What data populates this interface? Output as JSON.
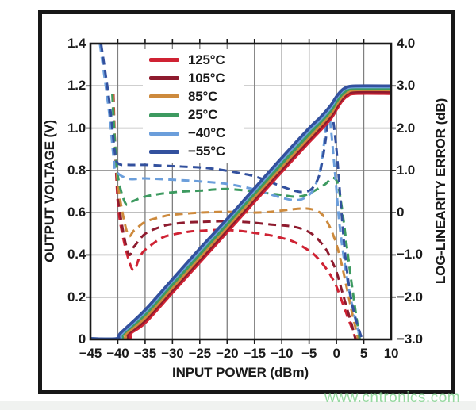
{
  "watermark": {
    "text": "www.cntronics.com",
    "color": "#86d392"
  },
  "frame_color": "#181818",
  "grid_color": "#7f7f7f",
  "axes": {
    "x": {
      "label": "INPUT POWER (dBm)",
      "min": -45,
      "max": 10,
      "ticks": [
        -45,
        -40,
        -35,
        -30,
        -25,
        -20,
        -15,
        -10,
        -5,
        0,
        5,
        10
      ],
      "tick_labels": [
        "−45",
        "−40",
        "−35",
        "−30",
        "−25",
        "−20",
        "−15",
        "−10",
        "−5",
        "0",
        "5",
        "10"
      ]
    },
    "y_left": {
      "label": "OUTPUT VOLTAGE (V)",
      "min": 0,
      "max": 1.4,
      "ticks": [
        1.4,
        1.2,
        1.0,
        0.8,
        0.6,
        0.4,
        0.2,
        0
      ],
      "tick_labels": [
        "1.4",
        "1.2",
        "1.0",
        "0.8",
        "0.6",
        "0.4",
        "0.2",
        "0"
      ]
    },
    "y_right": {
      "label": "LOG-LINEARITY ERROR (dB)",
      "min": -3,
      "max": 4,
      "ticks": [
        4.0,
        3.0,
        2.0,
        1.0,
        0,
        -1.0,
        -2.0,
        -3.0
      ],
      "tick_labels": [
        "4.0",
        "3.0",
        "2.0",
        "1.0",
        "0",
        "−1.0",
        "−2.0",
        "−3.0"
      ]
    }
  },
  "legend": {
    "items": [
      {
        "label": "125°C",
        "color": "#cf2233"
      },
      {
        "label": "105°C",
        "color": "#8e1b2e"
      },
      {
        "label": "85°C",
        "color": "#cd8a3d"
      },
      {
        "label": "25°C",
        "color": "#3d9a60"
      },
      {
        "label": "−40°C",
        "color": "#6b9edb"
      },
      {
        "label": "−55°C",
        "color": "#33519e"
      }
    ]
  },
  "chart_data": {
    "type": "line",
    "title": "",
    "x_unit": "dBm",
    "left_unit": "V",
    "right_unit": "dB",
    "grid": true,
    "legend_position": "upper-left-inside",
    "series": [
      {
        "name": "error-125C",
        "label": "125°C",
        "axis": "right",
        "style": "dashed",
        "color": "#cf2233",
        "points": [
          [
            -40.8,
            2.8
          ],
          [
            -40.35,
            1.1
          ],
          [
            -39.6,
            -0.2
          ],
          [
            -37.4,
            -1.33
          ],
          [
            -36,
            -1.05
          ],
          [
            -35,
            -0.88
          ],
          [
            -32,
            -0.6
          ],
          [
            -30,
            -0.52
          ],
          [
            -27,
            -0.45
          ],
          [
            -25,
            -0.43
          ],
          [
            -22,
            -0.41
          ],
          [
            -20,
            -0.41
          ],
          [
            -17,
            -0.44
          ],
          [
            -15,
            -0.48
          ],
          [
            -12,
            -0.54
          ],
          [
            -10,
            -0.6
          ],
          [
            -8,
            -0.68
          ],
          [
            -6,
            -0.82
          ],
          [
            -4,
            -1.0
          ],
          [
            -2,
            -1.3
          ],
          [
            -1,
            -1.5
          ],
          [
            0,
            -1.75
          ],
          [
            1,
            -2.1
          ],
          [
            2,
            -2.45
          ],
          [
            3,
            -2.8
          ],
          [
            3.9,
            -3.12
          ]
        ]
      },
      {
        "name": "error-105C",
        "label": "105°C",
        "axis": "right",
        "style": "dashed",
        "color": "#8e1b2e",
        "points": [
          [
            -40.85,
            2.8
          ],
          [
            -40.4,
            1.3
          ],
          [
            -39.7,
            0.1
          ],
          [
            -38.1,
            -0.95
          ],
          [
            -37,
            -0.8
          ],
          [
            -35,
            -0.5
          ],
          [
            -32,
            -0.33
          ],
          [
            -30,
            -0.27
          ],
          [
            -27,
            -0.23
          ],
          [
            -25,
            -0.22
          ],
          [
            -20,
            -0.2
          ],
          [
            -17,
            -0.22
          ],
          [
            -15,
            -0.24
          ],
          [
            -12,
            -0.28
          ],
          [
            -10,
            -0.3
          ],
          [
            -8,
            -0.33
          ],
          [
            -6,
            -0.4
          ],
          [
            -4,
            -0.55
          ],
          [
            -2,
            -0.85
          ],
          [
            -1,
            -1.1
          ],
          [
            0,
            -1.4
          ],
          [
            1,
            -1.85
          ],
          [
            2,
            -2.3
          ],
          [
            2.9,
            -2.7
          ],
          [
            3.7,
            -3.12
          ]
        ]
      },
      {
        "name": "error-85C",
        "label": "85°C",
        "axis": "right",
        "style": "dashed",
        "color": "#cd8a3d",
        "points": [
          [
            -40.9,
            2.8
          ],
          [
            -40.45,
            1.5
          ],
          [
            -39.8,
            0.5
          ],
          [
            -38.2,
            -0.5
          ],
          [
            -37,
            -0.42
          ],
          [
            -35,
            -0.22
          ],
          [
            -32,
            -0.1
          ],
          [
            -30,
            -0.05
          ],
          [
            -25,
            0.0
          ],
          [
            -20,
            0.02
          ],
          [
            -15,
            0.0
          ],
          [
            -12,
            0.02
          ],
          [
            -10,
            0.05
          ],
          [
            -8,
            0.08
          ],
          [
            -6,
            0.1
          ],
          [
            -4.5,
            0.08
          ],
          [
            -3,
            0.0
          ],
          [
            -2,
            -0.15
          ],
          [
            -1,
            -0.4
          ],
          [
            0,
            -0.75
          ],
          [
            1,
            -1.25
          ],
          [
            2,
            -1.85
          ],
          [
            3,
            -2.45
          ],
          [
            4.2,
            -3.12
          ]
        ]
      },
      {
        "name": "error-25C",
        "label": "25°C",
        "axis": "right",
        "style": "dashed",
        "color": "#3d9a60",
        "points": [
          [
            -41.0,
            2.8
          ],
          [
            -40.5,
            1.6
          ],
          [
            -39.9,
            0.8
          ],
          [
            -38.6,
            0.22
          ],
          [
            -37.5,
            0.26
          ],
          [
            -35,
            0.38
          ],
          [
            -32,
            0.45
          ],
          [
            -30,
            0.48
          ],
          [
            -27,
            0.51
          ],
          [
            -25,
            0.52
          ],
          [
            -22,
            0.55
          ],
          [
            -20,
            0.56
          ],
          [
            -17,
            0.53
          ],
          [
            -15,
            0.5
          ],
          [
            -12,
            0.45
          ],
          [
            -10,
            0.42
          ],
          [
            -8,
            0.38
          ],
          [
            -6,
            0.4
          ],
          [
            -4,
            0.52
          ],
          [
            -2,
            0.68
          ],
          [
            -0.8,
            0.82
          ],
          [
            0.2,
            0.7
          ],
          [
            1,
            0.1
          ],
          [
            1.8,
            -0.7
          ],
          [
            2.6,
            -1.5
          ],
          [
            3.4,
            -2.25
          ],
          [
            4.4,
            -3.12
          ]
        ]
      },
      {
        "name": "error-minus40C",
        "label": "−40°C",
        "axis": "right",
        "style": "dashed",
        "color": "#6b9edb",
        "points": [
          [
            -43.6,
            4.3
          ],
          [
            -41.7,
            2.5
          ],
          [
            -40.8,
            1.35
          ],
          [
            -40.3,
            0.98
          ],
          [
            -38,
            0.8
          ],
          [
            -35,
            0.81
          ],
          [
            -30,
            0.78
          ],
          [
            -25,
            0.74
          ],
          [
            -20,
            0.68
          ],
          [
            -15,
            0.55
          ],
          [
            -12,
            0.43
          ],
          [
            -10,
            0.35
          ],
          [
            -8,
            0.3
          ],
          [
            -6.5,
            0.31
          ],
          [
            -5,
            0.42
          ],
          [
            -4,
            0.6
          ],
          [
            -3,
            1.0
          ],
          [
            -2.3,
            1.6
          ],
          [
            -1.7,
            2.25
          ],
          [
            -1.2,
            2.2
          ],
          [
            -0.3,
            1.0
          ],
          [
            0.5,
            -0.2
          ],
          [
            1.5,
            -1.2
          ],
          [
            2.5,
            -1.95
          ],
          [
            3.5,
            -2.55
          ],
          [
            4.7,
            -3.12
          ]
        ]
      },
      {
        "name": "error-minus55C",
        "label": "−55°C",
        "axis": "right",
        "style": "dashed",
        "color": "#33519e",
        "points": [
          [
            -43.4,
            4.3
          ],
          [
            -41.5,
            2.6
          ],
          [
            -40.6,
            1.5
          ],
          [
            -40,
            1.17
          ],
          [
            -38,
            1.13
          ],
          [
            -35,
            1.13
          ],
          [
            -30,
            1.1
          ],
          [
            -25,
            1.07
          ],
          [
            -22,
            1.03
          ],
          [
            -20,
            0.99
          ],
          [
            -17,
            0.92
          ],
          [
            -15,
            0.86
          ],
          [
            -12,
            0.72
          ],
          [
            -10,
            0.62
          ],
          [
            -8,
            0.53
          ],
          [
            -6.5,
            0.49
          ],
          [
            -5,
            0.52
          ],
          [
            -4,
            0.65
          ],
          [
            -3,
            0.95
          ],
          [
            -2,
            1.7
          ],
          [
            -1.3,
            2.42
          ],
          [
            -0.8,
            2.35
          ],
          [
            0,
            1.5
          ],
          [
            0.8,
            0.2
          ],
          [
            1.6,
            -1.0
          ],
          [
            2.5,
            -1.9
          ],
          [
            3.5,
            -2.5
          ],
          [
            5,
            -3.12
          ]
        ]
      },
      {
        "name": "vout-125C",
        "label": "125°C",
        "axis": "left",
        "style": "solid",
        "color": "#cf2233",
        "points": [
          [
            -45,
            0.002
          ],
          [
            -38.3,
            0.002
          ],
          [
            -37.6,
            0.03
          ],
          [
            -35,
            0.079
          ],
          [
            -30,
            0.222
          ],
          [
            -25,
            0.365
          ],
          [
            -20,
            0.508
          ],
          [
            -15,
            0.651
          ],
          [
            -10,
            0.794
          ],
          [
            -5,
            0.934
          ],
          [
            -3,
            0.988
          ],
          [
            -1,
            1.046
          ],
          [
            0,
            1.088
          ],
          [
            1,
            1.128
          ],
          [
            2,
            1.152
          ],
          [
            3.5,
            1.164
          ],
          [
            10,
            1.164
          ]
        ]
      },
      {
        "name": "vout-105C",
        "label": "105°C",
        "axis": "left",
        "style": "solid",
        "color": "#8e1b2e",
        "points": [
          [
            -45,
            0.002
          ],
          [
            -38.7,
            0.002
          ],
          [
            -38,
            0.03
          ],
          [
            -35,
            0.091
          ],
          [
            -30,
            0.234
          ],
          [
            -25,
            0.377
          ],
          [
            -20,
            0.52
          ],
          [
            -15,
            0.663
          ],
          [
            -10,
            0.806
          ],
          [
            -5,
            0.945
          ],
          [
            -3,
            1.0
          ],
          [
            -1,
            1.058
          ],
          [
            0,
            1.1
          ],
          [
            1,
            1.138
          ],
          [
            2,
            1.162
          ],
          [
            3.5,
            1.172
          ],
          [
            10,
            1.172
          ]
        ]
      },
      {
        "name": "vout-85C",
        "label": "85°C",
        "axis": "left",
        "style": "solid",
        "color": "#cd8a3d",
        "points": [
          [
            -45,
            0.003
          ],
          [
            -39.1,
            0.003
          ],
          [
            -38.4,
            0.03
          ],
          [
            -35,
            0.103
          ],
          [
            -30,
            0.246
          ],
          [
            -25,
            0.389
          ],
          [
            -20,
            0.532
          ],
          [
            -15,
            0.675
          ],
          [
            -10,
            0.818
          ],
          [
            -5,
            0.957
          ],
          [
            -3,
            1.012
          ],
          [
            -1,
            1.07
          ],
          [
            0,
            1.112
          ],
          [
            1,
            1.148
          ],
          [
            2,
            1.17
          ],
          [
            3.5,
            1.181
          ],
          [
            10,
            1.181
          ]
        ]
      },
      {
        "name": "vout-25C",
        "label": "25°C",
        "axis": "left",
        "style": "solid",
        "color": "#3d9a60",
        "points": [
          [
            -45,
            0.003
          ],
          [
            -39.6,
            0.003
          ],
          [
            -38.9,
            0.03
          ],
          [
            -35,
            0.118
          ],
          [
            -30,
            0.26
          ],
          [
            -25,
            0.403
          ],
          [
            -20,
            0.546
          ],
          [
            -15,
            0.69
          ],
          [
            -10,
            0.832
          ],
          [
            -5,
            0.972
          ],
          [
            -3,
            1.026
          ],
          [
            -1,
            1.084
          ],
          [
            0,
            1.126
          ],
          [
            1,
            1.16
          ],
          [
            2,
            1.18
          ],
          [
            3.5,
            1.188
          ],
          [
            10,
            1.188
          ]
        ]
      },
      {
        "name": "vout-minus40C",
        "label": "−40°C",
        "axis": "left",
        "style": "solid",
        "color": "#6b9edb",
        "points": [
          [
            -45,
            0.004
          ],
          [
            -39.9,
            0.004
          ],
          [
            -39.2,
            0.03
          ],
          [
            -35,
            0.132
          ],
          [
            -30,
            0.277
          ],
          [
            -25,
            0.42
          ],
          [
            -20,
            0.563
          ],
          [
            -15,
            0.706
          ],
          [
            -10,
            0.85
          ],
          [
            -5,
            0.99
          ],
          [
            -3,
            1.04
          ],
          [
            -1,
            1.1
          ],
          [
            0,
            1.143
          ],
          [
            1,
            1.174
          ],
          [
            2,
            1.19
          ],
          [
            3.5,
            1.195
          ],
          [
            10,
            1.195
          ]
        ]
      },
      {
        "name": "vout-minus55C",
        "label": "−55°C",
        "axis": "left",
        "style": "solid",
        "color": "#33519e",
        "points": [
          [
            -45,
            0.004
          ],
          [
            -40.2,
            0.004
          ],
          [
            -39.5,
            0.03
          ],
          [
            -35,
            0.14
          ],
          [
            -30,
            0.285
          ],
          [
            -25,
            0.43
          ],
          [
            -20,
            0.57
          ],
          [
            -15,
            0.715
          ],
          [
            -10,
            0.86
          ],
          [
            -5,
            1.0
          ],
          [
            -3,
            1.05
          ],
          [
            -1,
            1.11
          ],
          [
            0,
            1.15
          ],
          [
            1,
            1.18
          ],
          [
            2,
            1.195
          ],
          [
            3.5,
            1.2
          ],
          [
            10,
            1.2
          ]
        ]
      }
    ]
  }
}
